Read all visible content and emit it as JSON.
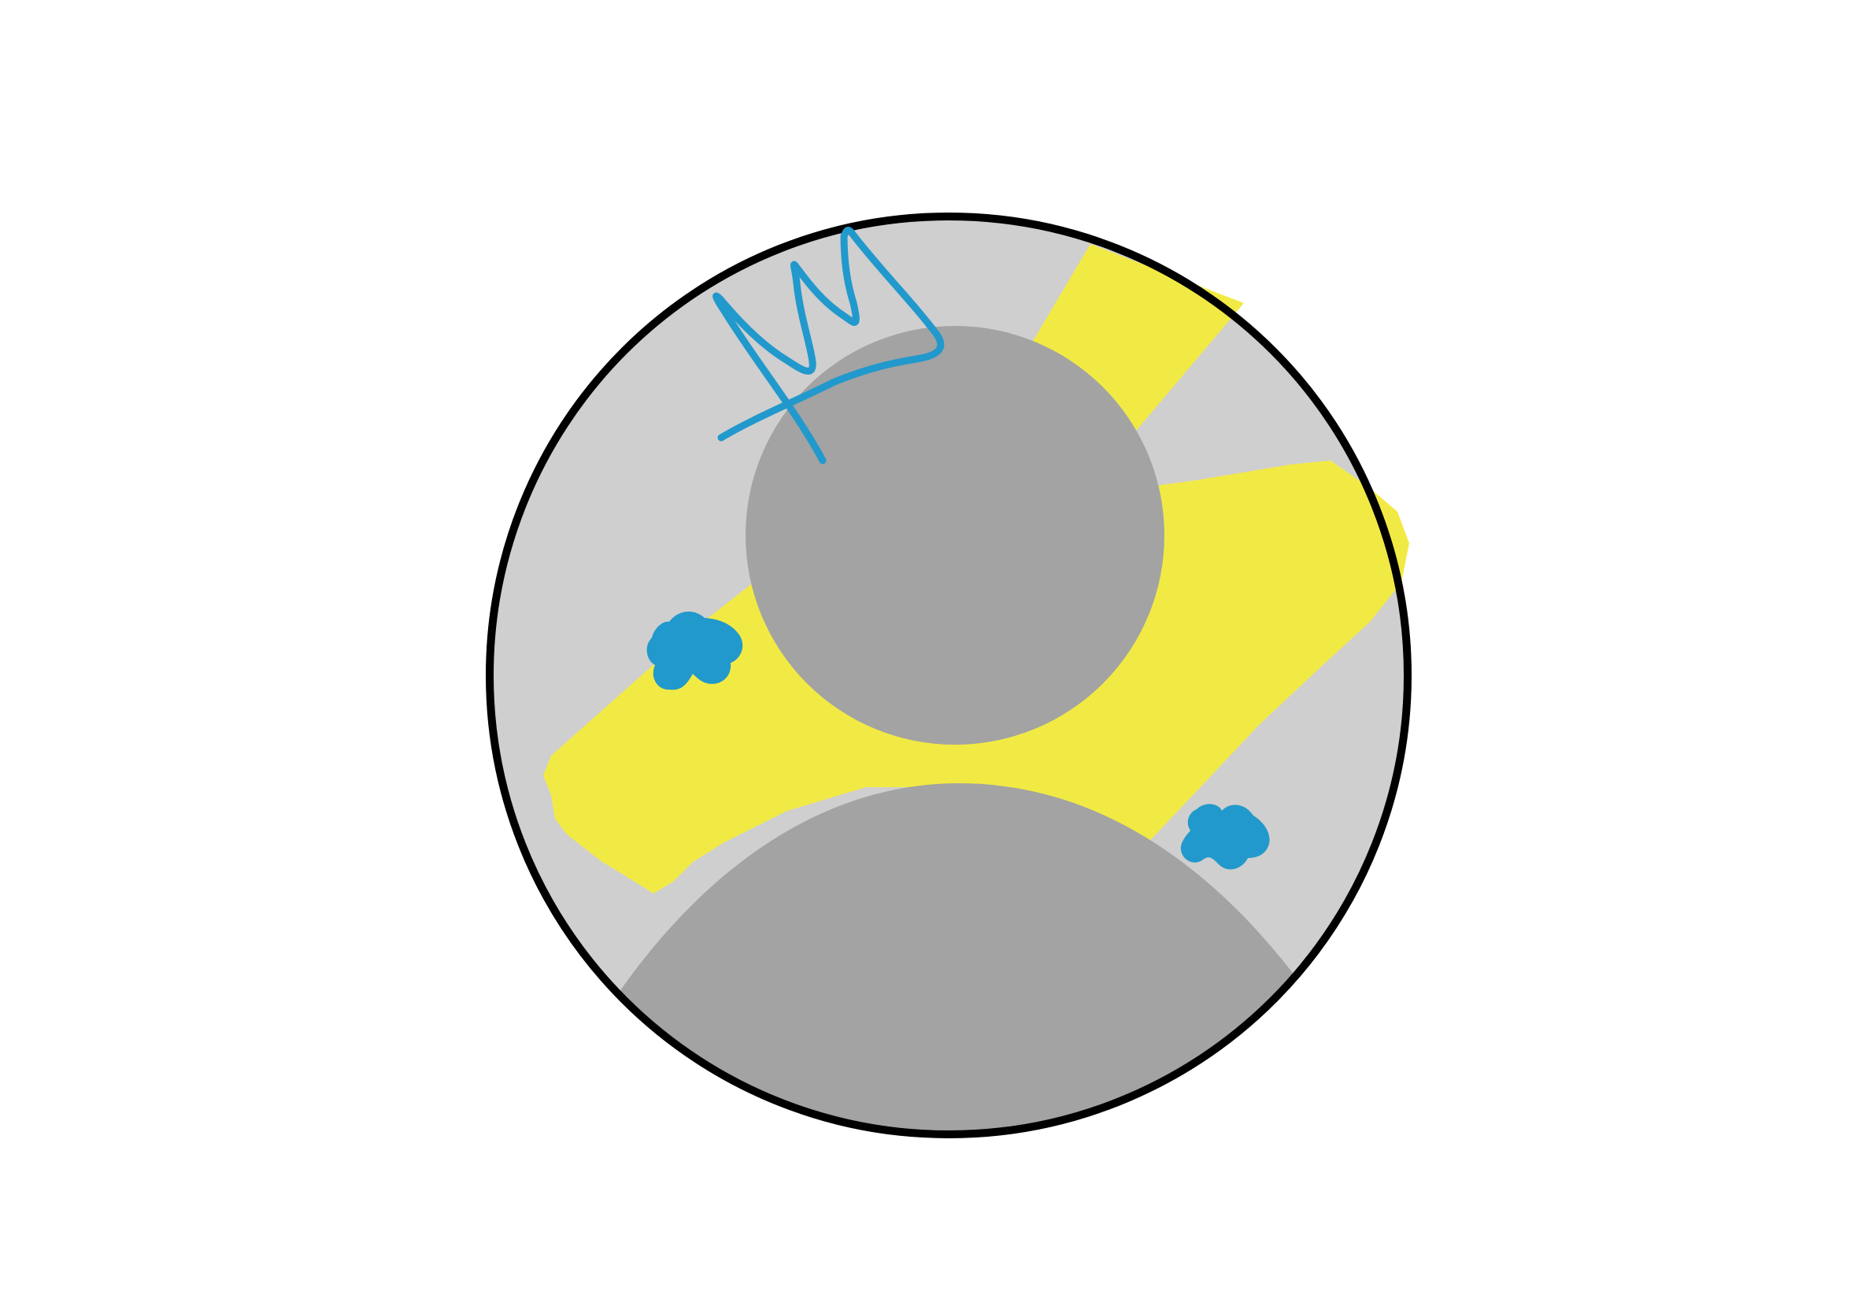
{
  "drawing": {
    "subject": "avatar-icon",
    "colors": {
      "background": "#ffffff",
      "circle_fill": "#cfcfcf",
      "silhouette": "#a3a3a3",
      "outline": "#000000",
      "highlighter": "#f2ea44",
      "pen": "#2299cc"
    },
    "marks": {
      "crown_scribble": "pen-stroke",
      "blue_blobs": 2,
      "yellow_highlight_bands": 2
    }
  }
}
